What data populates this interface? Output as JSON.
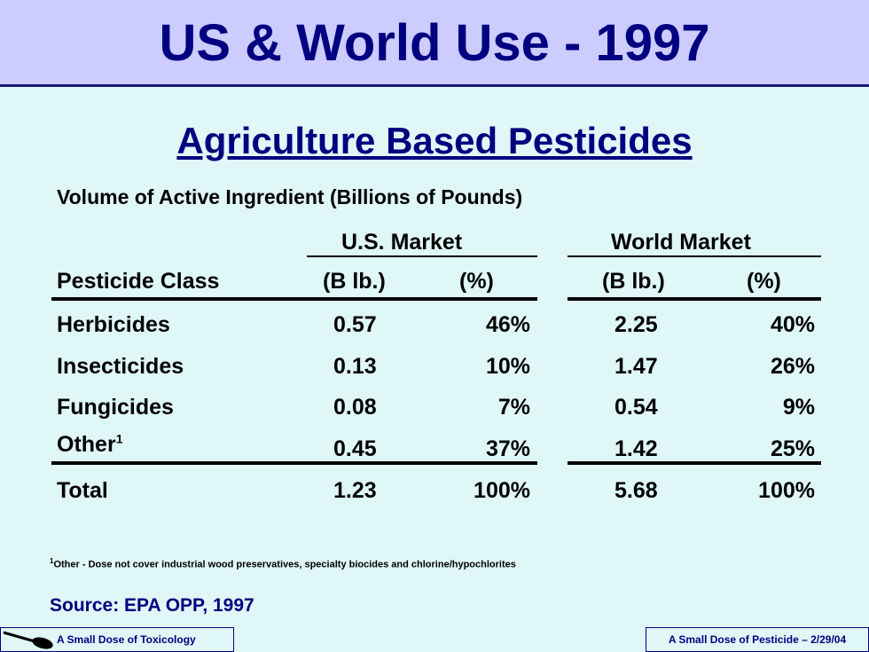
{
  "header": {
    "title": "US & World Use - 1997"
  },
  "slide": {
    "subtitle": "Agriculture Based Pesticides",
    "caption": "Volume of Active Ingredient (Billions of Pounds)"
  },
  "table": {
    "group_headers": {
      "us": "U.S. Market",
      "world": "World Market"
    },
    "columns": [
      "Pesticide Class",
      "(B lb.)",
      "(%)",
      "(B lb.)",
      "(%)"
    ],
    "rows": [
      [
        "Herbicides",
        "0.57",
        "46%",
        "2.25",
        "40%"
      ],
      [
        "Insecticides",
        "0.13",
        "10%",
        "1.47",
        "26%"
      ],
      [
        "Fungicides",
        "0.08",
        "7%",
        "0.54",
        "9%"
      ],
      [
        "Other",
        "0.45",
        "37%",
        "1.42",
        "25%"
      ]
    ],
    "other_footnote_mark": "1",
    "total": [
      "Total",
      "1.23",
      "100%",
      "5.68",
      "100%"
    ]
  },
  "footnote": {
    "mark": "1",
    "text": "Other - Dose not cover industrial wood preservatives, specialty biocides and chlorine/hypochlorites"
  },
  "source": "Source: EPA OPP, 1997",
  "footer": {
    "left": "A Small Dose of Toxicology",
    "right": "A Small Dose of Pesticide – 2/29/04",
    "logo_icon": "spoon-icon"
  }
}
